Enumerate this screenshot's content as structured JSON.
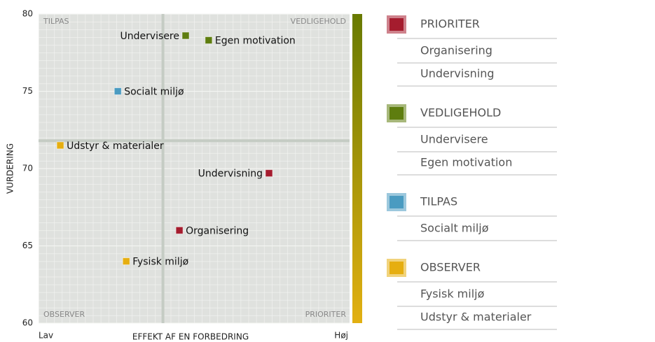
{
  "chart_data": {
    "type": "scatter",
    "x_label": "EFFEKT AF EN FORBEDRING",
    "y_label": "VURDERING",
    "xlim": [
      0,
      1
    ],
    "xticks": [
      {
        "value": 0,
        "label": "Lav"
      },
      {
        "value": 1,
        "label": "Høj"
      }
    ],
    "ylim": [
      60,
      80
    ],
    "yticks": [
      60,
      65,
      70,
      75,
      80
    ],
    "quadrant_lines": {
      "x": 0.4,
      "y": 71.8
    },
    "quadrant_labels": {
      "top_left": "TILPAS",
      "top_right": "VEDLIGEHOLD",
      "bottom_left": "OBSERVER",
      "bottom_right": "PRIORITER"
    },
    "grid": true,
    "series": [
      {
        "name": "PRIORITER",
        "color": "#a51c2e",
        "labels": [
          "Organisering",
          "Undervisning"
        ],
        "x": [
          0.453,
          0.741
        ],
        "values": [
          66.0,
          69.7
        ]
      },
      {
        "name": "VEDLIGEHOLD",
        "color": "#5e7d0f",
        "labels": [
          "Undervisere",
          "Egen motivation"
        ],
        "x": [
          0.473,
          0.547
        ],
        "values": [
          78.6,
          78.3
        ]
      },
      {
        "name": "TILPAS",
        "color": "#4a9bc1",
        "labels": [
          "Socialt miljø"
        ],
        "x": [
          0.255
        ],
        "values": [
          75.0
        ]
      },
      {
        "name": "OBSERVER",
        "color": "#e6ae10",
        "labels": [
          "Fysisk miljø",
          "Udstyr & materialer"
        ],
        "x": [
          0.282,
          0.07
        ],
        "values": [
          64.0,
          71.5
        ]
      }
    ]
  }
}
